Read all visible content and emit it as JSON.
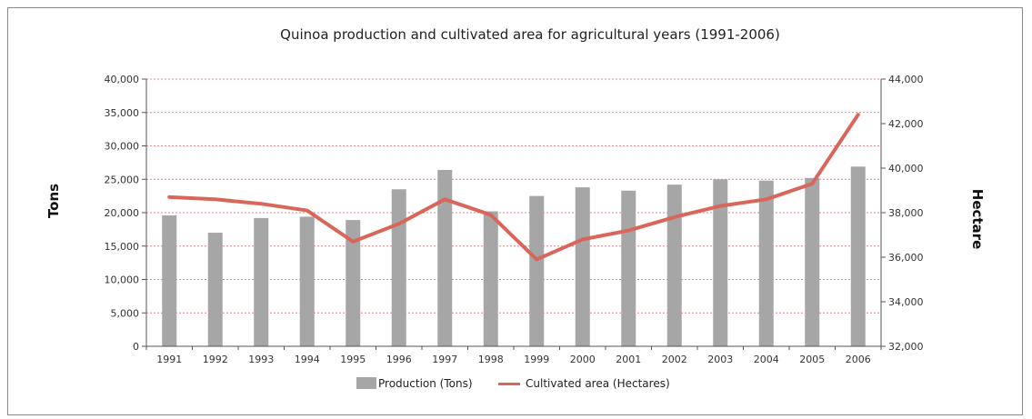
{
  "chart_data": {
    "type": "bar",
    "title": "Quinoa production and cultivated area for agricultural years (1991-2006)",
    "ylabel": "Tons",
    "y2label": "Hectare",
    "categories": [
      "1991",
      "1992",
      "1993",
      "1994",
      "1995",
      "1996",
      "1997",
      "1998",
      "1999",
      "2000",
      "2001",
      "2002",
      "2003",
      "2004",
      "2005",
      "2006"
    ],
    "ylim": [
      0,
      40000
    ],
    "y_ticks": [
      "0",
      "5,000",
      "10,000",
      "15,000",
      "20,000",
      "25,000",
      "30,000",
      "35,000",
      "40,000"
    ],
    "y2lim": [
      32000,
      44000
    ],
    "y2_ticks": [
      "32,000",
      "34,000",
      "36,000",
      "38,000",
      "40,000",
      "42,000",
      "44,000"
    ],
    "grid": true,
    "legend_position": "bottom",
    "series": [
      {
        "name": "Production (Tons)",
        "type": "bar",
        "axis": "left",
        "color": "#a6a6a6",
        "values": [
          19600,
          17000,
          19200,
          19400,
          18900,
          23500,
          26400,
          20200,
          22500,
          23800,
          23300,
          24200,
          25000,
          24800,
          25200,
          26900
        ]
      },
      {
        "name": "Cultivated area (Hectares)",
        "type": "line",
        "axis": "right",
        "color": "#d9665a",
        "values": [
          38700,
          38600,
          38400,
          38100,
          36700,
          37500,
          38600,
          37900,
          35900,
          36800,
          37200,
          37800,
          38300,
          38600,
          39300,
          42400
        ]
      }
    ],
    "grid_color": "#e87c87"
  }
}
